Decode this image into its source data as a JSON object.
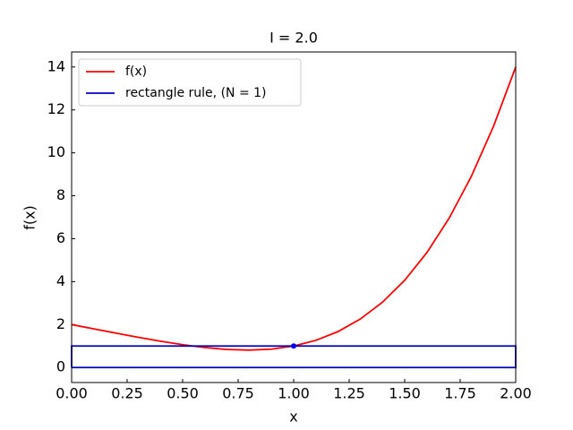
{
  "chart_data": {
    "type": "line",
    "title": "I = 2.0",
    "xlabel": "x",
    "ylabel": "f(x)",
    "xlim": [
      0,
      2
    ],
    "ylim": [
      -0.7,
      14.7
    ],
    "xticks": [
      {
        "value": 0,
        "label": "0.00"
      },
      {
        "value": 0.25,
        "label": "0.25"
      },
      {
        "value": 0.5,
        "label": "0.50"
      },
      {
        "value": 0.75,
        "label": "0.75"
      },
      {
        "value": 1,
        "label": "1.00"
      },
      {
        "value": 1.25,
        "label": "1.25"
      },
      {
        "value": 1.5,
        "label": "1.50"
      },
      {
        "value": 1.75,
        "label": "1.75"
      },
      {
        "value": 2,
        "label": "2.00"
      }
    ],
    "yticks": [
      0,
      2,
      4,
      6,
      8,
      10,
      12,
      14
    ],
    "legend": "upper left",
    "series": [
      {
        "name": "f(x)",
        "color": "#ff0000",
        "x": [
          0,
          0.1,
          0.2,
          0.3,
          0.4,
          0.5,
          0.6,
          0.7,
          0.8,
          0.9,
          1.0,
          1.1,
          1.2,
          1.3,
          1.4,
          1.5,
          1.6,
          1.7,
          1.8,
          1.9,
          2.0
        ],
        "values": [
          2,
          1.8001,
          1.6016,
          1.4081,
          1.2256,
          1.0625,
          0.9296,
          0.8401,
          0.8096,
          0.8561,
          1,
          1.2641,
          1.6736,
          2.2561,
          3.0416,
          4.0625,
          5.3536,
          6.9521,
          8.8976,
          11.2321,
          14
        ]
      },
      {
        "name": "rectangle rule, (N = 1)",
        "color": "#0000bf",
        "x": [
          0,
          0,
          2,
          2,
          0
        ],
        "values": [
          0,
          1,
          1,
          0,
          0
        ]
      }
    ],
    "midpoints": {
      "color": "#0000ff",
      "x": [
        1
      ],
      "values": [
        1
      ]
    }
  }
}
